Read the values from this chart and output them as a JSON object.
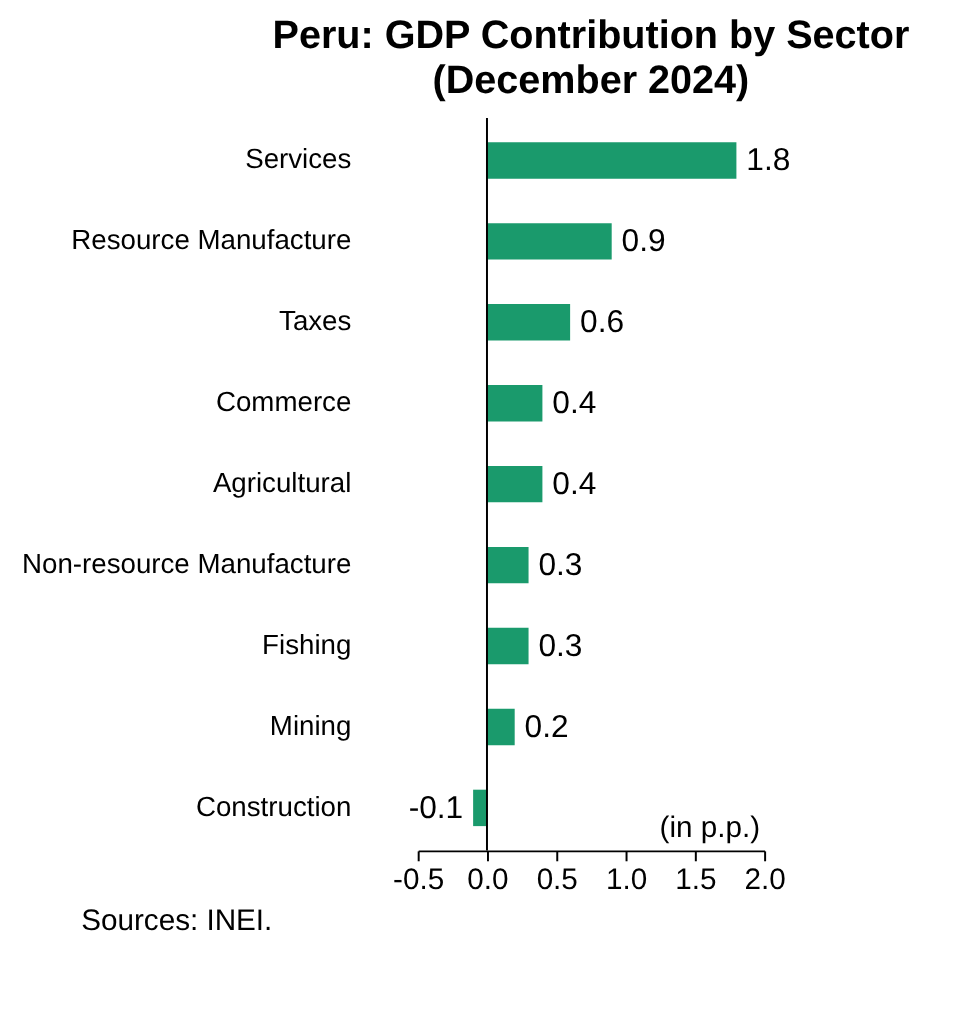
{
  "chart_data": {
    "type": "bar",
    "orientation": "horizontal",
    "title": "Peru: GDP Contribution by Sector",
    "subtitle": "(December 2024)",
    "categories": [
      "Services",
      "Resource Manufacture",
      "Taxes",
      "Commerce",
      "Agricultural",
      "Non-resource Manufacture",
      "Fishing",
      "Mining",
      "Construction"
    ],
    "values": [
      1.8,
      0.9,
      0.6,
      0.4,
      0.4,
      0.3,
      0.3,
      0.2,
      -0.1
    ],
    "color": "#1a9a6c",
    "data_labels": true,
    "xlim": [
      -0.5,
      2.0
    ],
    "xticks": [
      -0.5,
      {
        "value": 0,
        "label": "0.0"
      },
      0.5,
      {
        "value": 1,
        "label": "1.0"
      },
      1.5,
      {
        "value": 2,
        "label": "2.0"
      }
    ],
    "annotations": [
      "(in p.p.)",
      "Sources: INEI."
    ]
  }
}
